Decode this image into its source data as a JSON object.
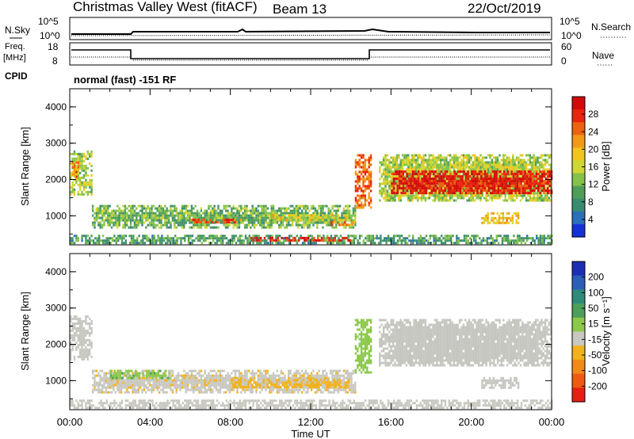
{
  "header": {
    "title": "Christmas Valley West (fitACF)",
    "beam": "Beam 13",
    "date": "22/Oct/2019"
  },
  "panels": {
    "nsky_label": "N.Sky",
    "nsky_ticks": [
      "10^5",
      "10^0"
    ],
    "nsearch_label": "N.Search",
    "nsearch_ticks": [
      "10^5",
      "10^0"
    ],
    "freq_label": "Freq.",
    "freq_unit": "[MHz]",
    "freq_ticks": [
      "18",
      "8"
    ],
    "nave_label": "Nave",
    "nave_ticks": [
      "60",
      "0"
    ],
    "cpid_label": "CPID",
    "cpid_text": "normal (fast) -151 RF"
  },
  "colors": {
    "power": [
      "#1433d6",
      "#2a70b9",
      "#3a8a72",
      "#4e9e58",
      "#86c24a",
      "#cfd733",
      "#f1c61c",
      "#f29a16",
      "#ee6110",
      "#e8230f",
      "#d30a0a"
    ],
    "velocity": [
      "#1b2fb6",
      "#2b5fb8",
      "#2f8a7a",
      "#4aa05a",
      "#8cc84a",
      "#c8c8c0",
      "#f2b21c",
      "#f28a16",
      "#ee5a12",
      "#e81e12"
    ],
    "velocity_gray": "#c6c6c0"
  },
  "chart_data": [
    {
      "type": "heatmap",
      "name": "Power",
      "ylabel": "Slant Range [km]",
      "yticks": [
        "4000",
        "3000",
        "2000",
        "1000"
      ],
      "ylim": [
        200,
        4500
      ],
      "xlim": [
        0,
        24
      ],
      "colorbar_label": "Power [dB]",
      "colorbar_ticks": [
        "28",
        "24",
        "20",
        "16",
        "12",
        "8",
        "4"
      ],
      "colorbar_range": [
        0,
        30
      ],
      "regions": [
        {
          "t0": 0.0,
          "t1": 1.1,
          "r0": 1600,
          "r1": 2800,
          "v": 14
        },
        {
          "t0": 0.1,
          "t1": 0.4,
          "r0": 2000,
          "r1": 2500,
          "v": 22
        },
        {
          "t0": 1.1,
          "t1": 14.2,
          "r0": 700,
          "r1": 1300,
          "v": 11
        },
        {
          "t0": 6.0,
          "t1": 8.5,
          "r0": 820,
          "r1": 920,
          "v": 24
        },
        {
          "t0": 10.0,
          "t1": 14.0,
          "r0": 900,
          "r1": 1050,
          "v": 16
        },
        {
          "t0": 13.0,
          "t1": 14.2,
          "r0": 750,
          "r1": 850,
          "v": 22
        },
        {
          "t0": 0.0,
          "t1": 24.0,
          "r0": 250,
          "r1": 480,
          "v": 9
        },
        {
          "t0": 9.0,
          "t1": 14.0,
          "r0": 300,
          "r1": 420,
          "v": 26
        },
        {
          "t0": 14.2,
          "t1": 15.0,
          "r0": 1200,
          "r1": 2700,
          "v": 23
        },
        {
          "t0": 15.4,
          "t1": 24.0,
          "r0": 1400,
          "r1": 2700,
          "v": 14
        },
        {
          "t0": 16.0,
          "t1": 24.0,
          "r0": 1600,
          "r1": 2250,
          "v": 27
        },
        {
          "t0": 20.5,
          "t1": 22.3,
          "r0": 800,
          "r1": 1100,
          "v": 18
        }
      ]
    },
    {
      "type": "heatmap",
      "name": "Velocity",
      "ylabel": "Slant Range [km]",
      "yticks": [
        "4000",
        "3000",
        "2000",
        "1000"
      ],
      "ylim": [
        200,
        4500
      ],
      "xlim": [
        0,
        24
      ],
      "xlabel": "Time UT",
      "xticks": [
        "00:00",
        "04:00",
        "08:00",
        "12:00",
        "16:00",
        "20:00",
        "00:00"
      ],
      "colorbar_label": "Velocity [m s⁻¹]",
      "colorbar_ticks": [
        "200",
        "100",
        "50",
        "15",
        "-15",
        "-50",
        "-100",
        "-200"
      ],
      "colorbar_range": [
        -250,
        250
      ],
      "regions": [
        {
          "t0": 0.0,
          "t1": 1.1,
          "r0": 1600,
          "r1": 2800,
          "v": 0
        },
        {
          "t0": 1.1,
          "t1": 14.2,
          "r0": 700,
          "r1": 1300,
          "v": -40
        },
        {
          "t0": 2.0,
          "t1": 5.0,
          "r0": 1050,
          "r1": 1300,
          "v": 40
        },
        {
          "t0": 8.0,
          "t1": 14.0,
          "r0": 800,
          "r1": 1050,
          "v": -60
        },
        {
          "t0": 0.0,
          "t1": 24.0,
          "r0": 250,
          "r1": 480,
          "v": -30
        },
        {
          "t0": 14.2,
          "t1": 15.0,
          "r0": 1200,
          "r1": 2700,
          "v": 30
        },
        {
          "t0": 15.4,
          "t1": 24.0,
          "r0": 1400,
          "r1": 2700,
          "v": 0
        },
        {
          "t0": 20.5,
          "t1": 22.3,
          "r0": 800,
          "r1": 1100,
          "v": 0
        }
      ]
    }
  ]
}
